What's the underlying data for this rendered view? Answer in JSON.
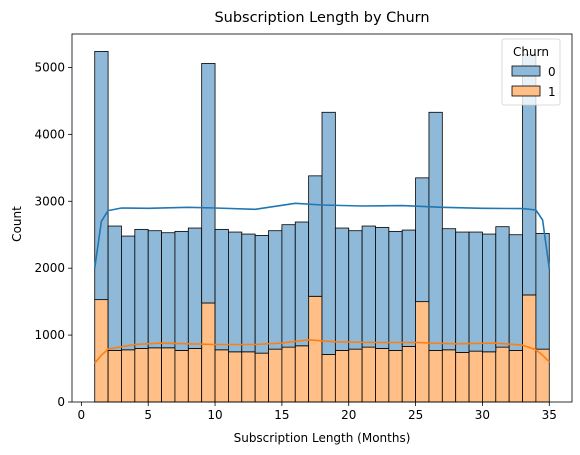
{
  "chart_data": {
    "type": "bar",
    "stacked": true,
    "title": "Subscription Length by Churn",
    "xlabel": "Subscription Length (Months)",
    "ylabel": "Count",
    "xlim": [
      -0.7,
      36.7
    ],
    "ylim": [
      0,
      5500
    ],
    "xticks": [
      0,
      5,
      10,
      15,
      20,
      25,
      30,
      35
    ],
    "yticks": [
      0,
      1000,
      2000,
      3000,
      4000,
      5000
    ],
    "grid": false,
    "legend": {
      "title": "Churn",
      "placement": "top-right"
    },
    "bins": [
      [
        1.0,
        2.0
      ],
      [
        2.0,
        3.0
      ],
      [
        3.0,
        4.0
      ],
      [
        4.0,
        5.0
      ],
      [
        5.0,
        6.0
      ],
      [
        6.0,
        7.0
      ],
      [
        7.0,
        8.0
      ],
      [
        8.0,
        9.0
      ],
      [
        9.0,
        10.0
      ],
      [
        10.0,
        11.0
      ],
      [
        11.0,
        12.0
      ],
      [
        12.0,
        13.0
      ],
      [
        13.0,
        14.0
      ],
      [
        14.0,
        15.0
      ],
      [
        15.0,
        16.0
      ],
      [
        16.0,
        17.0
      ],
      [
        17.0,
        18.0
      ],
      [
        18.0,
        19.0
      ],
      [
        19.0,
        20.0
      ],
      [
        20.0,
        21.0
      ],
      [
        21.0,
        22.0
      ],
      [
        22.0,
        23.0
      ],
      [
        23.0,
        24.0
      ],
      [
        24.0,
        25.0
      ],
      [
        25.0,
        26.0
      ],
      [
        26.0,
        27.0
      ],
      [
        27.0,
        28.0
      ],
      [
        28.0,
        29.0
      ],
      [
        29.0,
        30.0
      ],
      [
        30.0,
        31.0
      ],
      [
        31.0,
        32.0
      ],
      [
        32.0,
        33.0
      ],
      [
        33.0,
        34.0
      ],
      [
        34.0,
        35.0
      ]
    ],
    "series": [
      {
        "name": "0",
        "color": "#1f77b4",
        "fill": "#8fb9d9",
        "values": [
          3710,
          1860,
          1700,
          1780,
          1750,
          1720,
          1780,
          1800,
          3580,
          1800,
          1790,
          1760,
          1760,
          1770,
          1830,
          1850,
          1800,
          3620,
          1830,
          1770,
          1810,
          1810,
          1780,
          1740,
          1850,
          3560,
          1810,
          1800,
          1780,
          1760,
          1800,
          1730,
          3590,
          1730
        ]
      },
      {
        "name": "1",
        "color": "#ff7f0e",
        "fill": "#ffbf86",
        "values": [
          1530,
          770,
          780,
          800,
          810,
          810,
          770,
          800,
          1480,
          780,
          750,
          750,
          730,
          790,
          820,
          840,
          1580,
          710,
          770,
          790,
          820,
          800,
          770,
          830,
          1500,
          770,
          780,
          740,
          760,
          750,
          820,
          770,
          1600,
          790
        ]
      }
    ],
    "kde": [
      {
        "series": "0",
        "color": "#1f77b4",
        "points": [
          [
            1.0,
            2000
          ],
          [
            1.5,
            2700
          ],
          [
            2.0,
            2860
          ],
          [
            3.0,
            2900
          ],
          [
            5.0,
            2895
          ],
          [
            8.0,
            2910
          ],
          [
            10.0,
            2900
          ],
          [
            13.0,
            2880
          ],
          [
            16.0,
            2970
          ],
          [
            18.0,
            2945
          ],
          [
            21.0,
            2930
          ],
          [
            24.0,
            2935
          ],
          [
            27.0,
            2910
          ],
          [
            30.0,
            2895
          ],
          [
            33.0,
            2890
          ],
          [
            34.0,
            2870
          ],
          [
            34.5,
            2720
          ],
          [
            35.0,
            1990
          ]
        ]
      },
      {
        "series": "1",
        "color": "#ff7f0e",
        "points": [
          [
            1.0,
            580
          ],
          [
            1.5,
            700
          ],
          [
            2.0,
            790
          ],
          [
            4.0,
            860
          ],
          [
            6.0,
            880
          ],
          [
            8.0,
            870
          ],
          [
            10.0,
            860
          ],
          [
            13.0,
            860
          ],
          [
            15.0,
            880
          ],
          [
            17.0,
            930
          ],
          [
            19.0,
            900
          ],
          [
            22.0,
            890
          ],
          [
            25.0,
            890
          ],
          [
            28.0,
            870
          ],
          [
            31.0,
            880
          ],
          [
            33.0,
            850
          ],
          [
            34.0,
            780
          ],
          [
            34.5,
            700
          ],
          [
            35.0,
            600
          ]
        ]
      }
    ]
  }
}
